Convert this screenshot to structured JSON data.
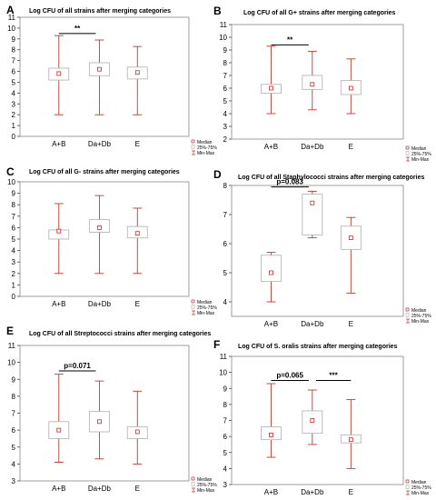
{
  "legend": {
    "median": "Median",
    "iqr": "25%-75%",
    "range": "Min-Max"
  },
  "chart_data": [
    {
      "type": "box",
      "panel_letter": "A",
      "title": "Log CFU of all strains after merging categories",
      "categories": [
        "A+B",
        "Da+Db",
        "E"
      ],
      "ylim": [
        0,
        11
      ],
      "yticks": [
        0,
        1,
        2,
        3,
        4,
        5,
        6,
        7,
        8,
        9,
        10,
        11
      ],
      "boxes": [
        {
          "min": 2.0,
          "q1": 5.2,
          "median": 5.8,
          "q3": 6.3,
          "max": 9.3
        },
        {
          "min": 2.0,
          "q1": 5.6,
          "median": 6.2,
          "q3": 6.8,
          "max": 8.9
        },
        {
          "min": 2.0,
          "q1": 5.3,
          "median": 5.9,
          "q3": 6.4,
          "max": 8.3
        }
      ],
      "annotations": [
        {
          "text": "**",
          "from": 0,
          "to": 1,
          "y": 9.5
        }
      ]
    },
    {
      "type": "box",
      "panel_letter": "B",
      "title": "Log CFU of all G+ strains after merging categories",
      "categories": [
        "A+B",
        "Da+Db",
        "E"
      ],
      "ylim": [
        2,
        11
      ],
      "yticks": [
        2,
        3,
        4,
        5,
        6,
        7,
        8,
        9,
        10,
        11
      ],
      "boxes": [
        {
          "min": 4.0,
          "q1": 5.6,
          "median": 6.0,
          "q3": 6.3,
          "max": 9.3
        },
        {
          "min": 4.3,
          "q1": 5.9,
          "median": 6.3,
          "q3": 7.0,
          "max": 8.9
        },
        {
          "min": 4.0,
          "q1": 5.5,
          "median": 6.0,
          "q3": 6.6,
          "max": 8.3
        }
      ],
      "annotations": [
        {
          "text": "**",
          "from": 0,
          "to": 1,
          "y": 9.4
        }
      ]
    },
    {
      "type": "box",
      "panel_letter": "C",
      "title": "Log CFU of all G- strains after merging categories",
      "categories": [
        "A+B",
        "Da+Db",
        "E"
      ],
      "ylim": [
        0,
        10
      ],
      "yticks": [
        0,
        1,
        2,
        3,
        4,
        5,
        6,
        7,
        8,
        9,
        10
      ],
      "boxes": [
        {
          "min": 2.0,
          "q1": 5.0,
          "median": 5.7,
          "q3": 5.8,
          "max": 8.1
        },
        {
          "min": 2.0,
          "q1": 5.6,
          "median": 6.0,
          "q3": 6.7,
          "max": 8.8
        },
        {
          "min": 2.0,
          "q1": 5.1,
          "median": 5.5,
          "q3": 6.1,
          "max": 7.7
        }
      ],
      "annotations": []
    },
    {
      "type": "box",
      "panel_letter": "D",
      "title": "Log CFU of all Staphylococci strains after merging categories",
      "categories": [
        "A+B",
        "Da+Db",
        "E"
      ],
      "ylim": [
        3.5,
        8.0
      ],
      "yticks": [
        4,
        5,
        6,
        7,
        8
      ],
      "boxes": [
        {
          "min": 4.0,
          "q1": 4.7,
          "median": 5.0,
          "q3": 5.6,
          "max": 5.7
        },
        {
          "min": 6.2,
          "q1": 6.3,
          "median": 7.4,
          "q3": 7.7,
          "max": 7.8
        },
        {
          "min": 4.3,
          "q1": 5.8,
          "median": 6.2,
          "q3": 6.6,
          "max": 6.9
        }
      ],
      "annotations": [
        {
          "text": "p=0.083",
          "from": 0,
          "to": 1,
          "y": 7.95
        }
      ]
    },
    {
      "type": "box",
      "panel_letter": "E",
      "title": "Log CFU of all Streptococci strains after merging categories",
      "categories": [
        "A+B",
        "Da+Db",
        "E"
      ],
      "ylim": [
        3,
        11
      ],
      "yticks": [
        3,
        4,
        5,
        6,
        7,
        8,
        9,
        10,
        11
      ],
      "boxes": [
        {
          "min": 4.1,
          "q1": 5.5,
          "median": 6.0,
          "q3": 6.5,
          "max": 9.3
        },
        {
          "min": 4.3,
          "q1": 5.9,
          "median": 6.5,
          "q3": 7.1,
          "max": 8.9
        },
        {
          "min": 4.0,
          "q1": 5.5,
          "median": 5.9,
          "q3": 6.2,
          "max": 8.3
        }
      ],
      "annotations": [
        {
          "text": "p=0.071",
          "from": 0,
          "to": 1,
          "y": 9.5
        }
      ]
    },
    {
      "type": "box",
      "panel_letter": "F",
      "title": "Log CFU of S. oralis strains after merging categories",
      "categories": [
        "A+B",
        "Da+Db",
        "E"
      ],
      "ylim": [
        3,
        11
      ],
      "yticks": [
        3,
        4,
        5,
        6,
        7,
        8,
        9,
        10,
        11
      ],
      "boxes": [
        {
          "min": 4.7,
          "q1": 5.8,
          "median": 6.1,
          "q3": 6.6,
          "max": 9.3
        },
        {
          "min": 5.5,
          "q1": 6.2,
          "median": 7.0,
          "q3": 7.6,
          "max": 8.9
        },
        {
          "min": 4.0,
          "q1": 5.6,
          "median": 5.8,
          "q3": 6.1,
          "max": 8.3
        }
      ],
      "annotations": [
        {
          "text": "p=0.065",
          "from": 0,
          "to": 1,
          "y": 9.5
        },
        {
          "text": "***",
          "from": 1,
          "to": 2,
          "y": 9.5
        }
      ]
    }
  ]
}
